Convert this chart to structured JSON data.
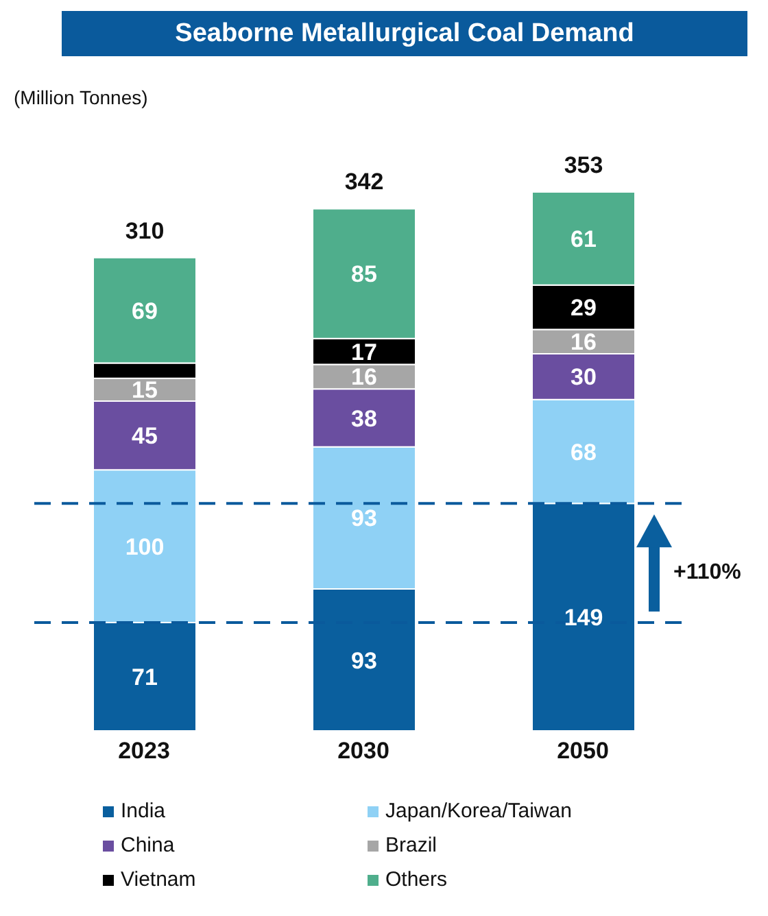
{
  "chart_data": {
    "type": "bar",
    "title": "Seaborne Metallurgical Coal Demand",
    "subtitle": "(Million Tonnes)",
    "categories": [
      "2023",
      "2030",
      "2050"
    ],
    "stacked": true,
    "tick_labels": "x",
    "legend": "bottom",
    "series": [
      {
        "name": "India",
        "color": "#0a5f9e",
        "values": [
          71,
          93,
          149
        ],
        "value_labels": [
          "71",
          "93",
          "149"
        ]
      },
      {
        "name": "Japan/Korea/Taiwan",
        "color": "#8fd1f5",
        "values": [
          100,
          93,
          68
        ],
        "value_labels": [
          "100",
          "93",
          "68"
        ]
      },
      {
        "name": "China",
        "color": "#6a4ea0",
        "values": [
          45,
          38,
          30
        ],
        "value_labels": [
          "45",
          "38",
          "30"
        ]
      },
      {
        "name": "Brazil",
        "color": "#a6a6a6",
        "values": [
          15,
          16,
          16
        ],
        "value_labels": [
          "15",
          "16",
          "16"
        ]
      },
      {
        "name": "Vietnam",
        "color": "#000000",
        "values": [
          10,
          17,
          29
        ],
        "value_labels": [
          null,
          "17",
          "29"
        ]
      },
      {
        "name": "Others",
        "color": "#4fae8c",
        "values": [
          69,
          85,
          61
        ],
        "value_labels": [
          "69",
          "85",
          "61"
        ]
      }
    ],
    "totals": [
      "310",
      "342",
      "353"
    ],
    "ref_lines": [
      {
        "axis": "y",
        "value": 71,
        "color": "#0a5a9c",
        "line_style": "dashed"
      },
      {
        "axis": "y",
        "value": 149,
        "color": "#0a5a9c",
        "line_style": "dashed"
      }
    ],
    "annotations": [
      "+110%"
    ]
  }
}
